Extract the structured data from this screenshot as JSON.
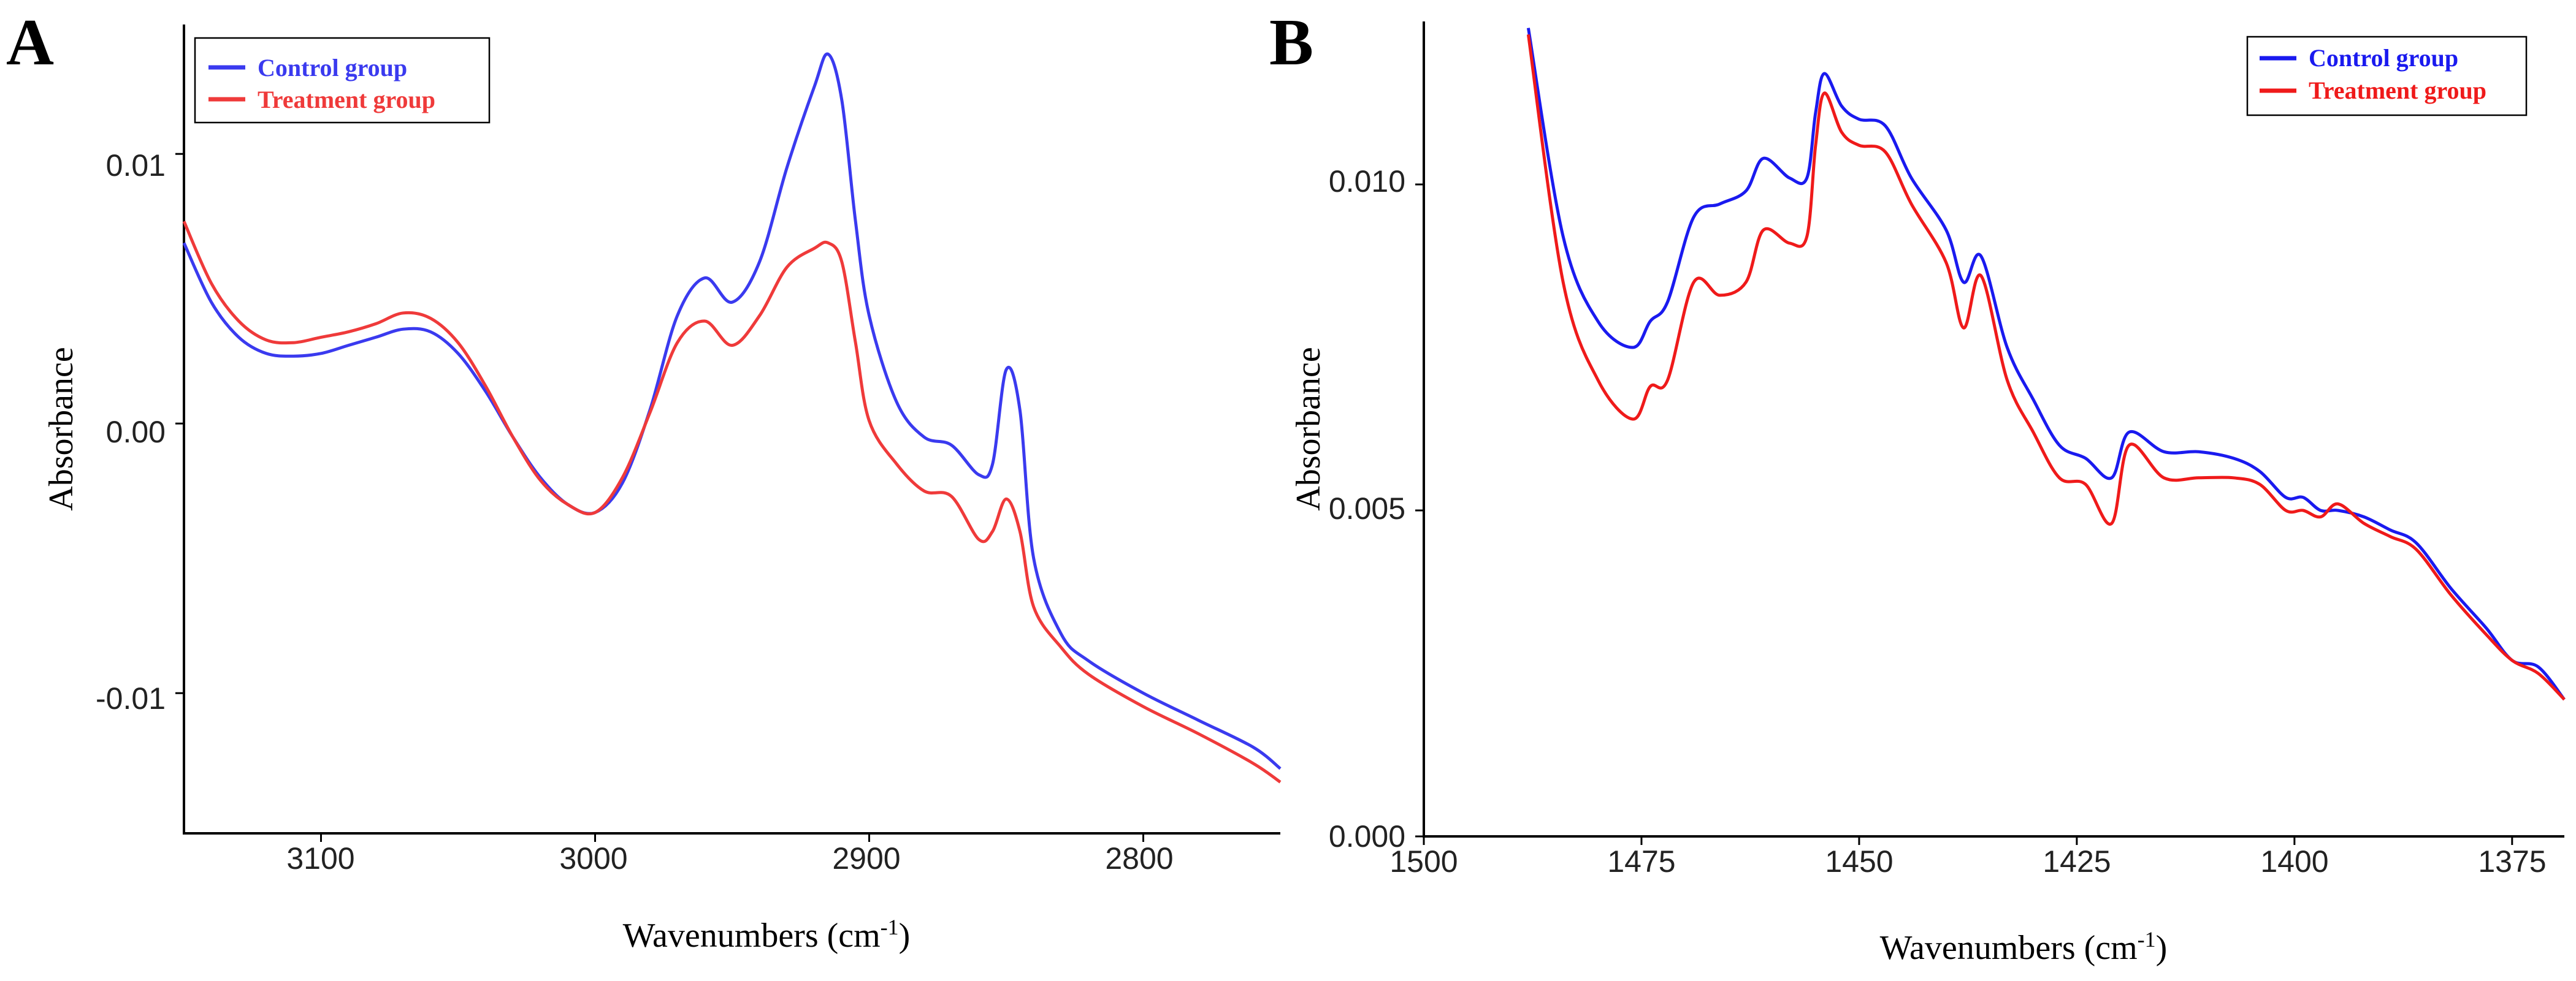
{
  "chart_data": [
    {
      "panel": "A",
      "type": "line",
      "xlabel_main": "Wavenumbers (cm",
      "xlabel_sup": "-1",
      "xlabel_end": ")",
      "ylabel": "Absorbance",
      "xlim": [
        3150,
        2750
      ],
      "ylim": [
        -0.0152,
        0.0148
      ],
      "xticks": [
        3100,
        3000,
        2900,
        2800
      ],
      "xtick_labels": [
        "3100",
        "3000",
        "2900",
        "2800"
      ],
      "yticks": [
        0.01,
        0.0,
        -0.01
      ],
      "ytick_labels": [
        "0.01",
        "0.00",
        "-0.01"
      ],
      "legend": {
        "position": "top-left",
        "entries": [
          "Control group",
          "Treatment group"
        ]
      },
      "series": [
        {
          "name": "Control group",
          "color": "#3a3aef",
          "points": [
            [
              3150,
              0.0067
            ],
            [
              3140,
              0.0045
            ],
            [
              3130,
              0.0032
            ],
            [
              3120,
              0.0026
            ],
            [
              3110,
              0.0025
            ],
            [
              3100,
              0.0026
            ],
            [
              3090,
              0.0029
            ],
            [
              3080,
              0.0032
            ],
            [
              3070,
              0.0035
            ],
            [
              3060,
              0.0034
            ],
            [
              3050,
              0.0026
            ],
            [
              3040,
              0.0012
            ],
            [
              3030,
              -0.0005
            ],
            [
              3020,
              -0.002
            ],
            [
              3010,
              -0.003
            ],
            [
              3000,
              -0.0033
            ],
            [
              2990,
              -0.0022
            ],
            [
              2980,
              0.0005
            ],
            [
              2970,
              0.004
            ],
            [
              2960,
              0.0054
            ],
            [
              2950,
              0.0045
            ],
            [
              2940,
              0.006
            ],
            [
              2930,
              0.0095
            ],
            [
              2920,
              0.0125
            ],
            [
              2915,
              0.0137
            ],
            [
              2910,
              0.012
            ],
            [
              2905,
              0.0075
            ],
            [
              2900,
              0.004
            ],
            [
              2890,
              0.0008
            ],
            [
              2880,
              -0.0005
            ],
            [
              2870,
              -0.0008
            ],
            [
              2860,
              -0.0019
            ],
            [
              2855,
              -0.0015
            ],
            [
              2850,
              0.002
            ],
            [
              2845,
              0.0005
            ],
            [
              2840,
              -0.005
            ],
            [
              2830,
              -0.0078
            ],
            [
              2820,
              -0.0088
            ],
            [
              2800,
              -0.01
            ],
            [
              2780,
              -0.011
            ],
            [
              2760,
              -0.012
            ],
            [
              2750,
              -0.0128
            ]
          ]
        },
        {
          "name": "Treatment group",
          "color": "#ef3a3a",
          "points": [
            [
              3150,
              0.0075
            ],
            [
              3140,
              0.0052
            ],
            [
              3130,
              0.0038
            ],
            [
              3120,
              0.0031
            ],
            [
              3110,
              0.003
            ],
            [
              3100,
              0.0032
            ],
            [
              3090,
              0.0034
            ],
            [
              3080,
              0.0037
            ],
            [
              3070,
              0.0041
            ],
            [
              3060,
              0.0039
            ],
            [
              3050,
              0.003
            ],
            [
              3040,
              0.0014
            ],
            [
              3030,
              -0.0005
            ],
            [
              3020,
              -0.0021
            ],
            [
              3010,
              -0.003
            ],
            [
              3000,
              -0.0033
            ],
            [
              2990,
              -0.002
            ],
            [
              2980,
              0.0004
            ],
            [
              2970,
              0.003
            ],
            [
              2960,
              0.0038
            ],
            [
              2950,
              0.0029
            ],
            [
              2940,
              0.004
            ],
            [
              2930,
              0.0058
            ],
            [
              2920,
              0.0065
            ],
            [
              2915,
              0.0067
            ],
            [
              2910,
              0.006
            ],
            [
              2905,
              0.003
            ],
            [
              2900,
              0.0001
            ],
            [
              2890,
              -0.0015
            ],
            [
              2880,
              -0.0025
            ],
            [
              2870,
              -0.0027
            ],
            [
              2860,
              -0.0043
            ],
            [
              2855,
              -0.004
            ],
            [
              2850,
              -0.0028
            ],
            [
              2845,
              -0.004
            ],
            [
              2840,
              -0.0068
            ],
            [
              2830,
              -0.0083
            ],
            [
              2820,
              -0.0093
            ],
            [
              2800,
              -0.0105
            ],
            [
              2780,
              -0.0115
            ],
            [
              2760,
              -0.0126
            ],
            [
              2750,
              -0.0133
            ]
          ]
        }
      ]
    },
    {
      "panel": "B",
      "type": "line",
      "xlabel_main": "Wavenumbers (cm",
      "xlabel_sup": "-1",
      "xlabel_end": ")",
      "ylabel": "Absorbance",
      "xlim": [
        1500,
        1369
      ],
      "ylim": [
        0.0,
        0.0125
      ],
      "xticks": [
        1500,
        1475,
        1450,
        1425,
        1400,
        1375
      ],
      "xtick_labels": [
        "1500",
        "1475",
        "1450",
        "1425",
        "1400",
        "1375"
      ],
      "yticks": [
        0.0,
        0.005,
        0.01
      ],
      "ytick_labels": [
        "0.000",
        "0.005",
        "0.010"
      ],
      "legend": {
        "position": "top-right",
        "entries": [
          "Control group",
          "Treatment group"
        ]
      },
      "series": [
        {
          "name": "Control group",
          "color": "#1a1aef",
          "points": [
            [
              1488,
              0.0124
            ],
            [
              1484,
              0.0092
            ],
            [
              1480,
              0.0079
            ],
            [
              1476,
              0.0075
            ],
            [
              1474,
              0.0079
            ],
            [
              1472,
              0.0082
            ],
            [
              1469,
              0.0095
            ],
            [
              1466,
              0.0097
            ],
            [
              1463,
              0.0099
            ],
            [
              1461,
              0.0104
            ],
            [
              1458,
              0.0101
            ],
            [
              1456,
              0.0101
            ],
            [
              1455,
              0.0111
            ],
            [
              1454,
              0.0117
            ],
            [
              1452,
              0.0112
            ],
            [
              1450,
              0.011
            ],
            [
              1447,
              0.0109
            ],
            [
              1444,
              0.0101
            ],
            [
              1440,
              0.0093
            ],
            [
              1438,
              0.0085
            ],
            [
              1436,
              0.0089
            ],
            [
              1433,
              0.0075
            ],
            [
              1430,
              0.0067
            ],
            [
              1427,
              0.006
            ],
            [
              1424,
              0.0058
            ],
            [
              1421,
              0.0055
            ],
            [
              1419,
              0.0062
            ],
            [
              1415,
              0.0059
            ],
            [
              1411,
              0.0059
            ],
            [
              1407,
              0.0058
            ],
            [
              1404,
              0.0056
            ],
            [
              1401,
              0.0052
            ],
            [
              1399,
              0.0052
            ],
            [
              1397,
              0.005
            ],
            [
              1395,
              0.005
            ],
            [
              1392,
              0.0049
            ],
            [
              1389,
              0.0047
            ],
            [
              1386,
              0.0045
            ],
            [
              1382,
              0.0038
            ],
            [
              1378,
              0.0032
            ],
            [
              1375,
              0.0027
            ],
            [
              1372,
              0.0026
            ],
            [
              1369,
              0.0021
            ]
          ]
        },
        {
          "name": "Treatment group",
          "color": "#ef1a1a",
          "points": [
            [
              1488,
              0.0123
            ],
            [
              1484,
              0.0085
            ],
            [
              1480,
              0.007
            ],
            [
              1476,
              0.0064
            ],
            [
              1474,
              0.0069
            ],
            [
              1472,
              0.007
            ],
            [
              1469,
              0.0085
            ],
            [
              1466,
              0.0083
            ],
            [
              1463,
              0.0085
            ],
            [
              1461,
              0.0093
            ],
            [
              1458,
              0.0091
            ],
            [
              1456,
              0.0092
            ],
            [
              1455,
              0.0106
            ],
            [
              1454,
              0.0114
            ],
            [
              1452,
              0.0108
            ],
            [
              1450,
              0.0106
            ],
            [
              1447,
              0.0105
            ],
            [
              1444,
              0.0097
            ],
            [
              1440,
              0.0088
            ],
            [
              1438,
              0.0078
            ],
            [
              1436,
              0.0086
            ],
            [
              1433,
              0.007
            ],
            [
              1430,
              0.0062
            ],
            [
              1427,
              0.0055
            ],
            [
              1424,
              0.0054
            ],
            [
              1421,
              0.0048
            ],
            [
              1419,
              0.006
            ],
            [
              1415,
              0.0055
            ],
            [
              1411,
              0.0055
            ],
            [
              1407,
              0.0055
            ],
            [
              1404,
              0.0054
            ],
            [
              1401,
              0.005
            ],
            [
              1399,
              0.005
            ],
            [
              1397,
              0.0049
            ],
            [
              1395,
              0.0051
            ],
            [
              1392,
              0.0048
            ],
            [
              1389,
              0.0046
            ],
            [
              1386,
              0.0044
            ],
            [
              1382,
              0.0037
            ],
            [
              1378,
              0.0031
            ],
            [
              1375,
              0.0027
            ],
            [
              1372,
              0.0025
            ],
            [
              1369,
              0.0021
            ]
          ]
        }
      ]
    }
  ]
}
